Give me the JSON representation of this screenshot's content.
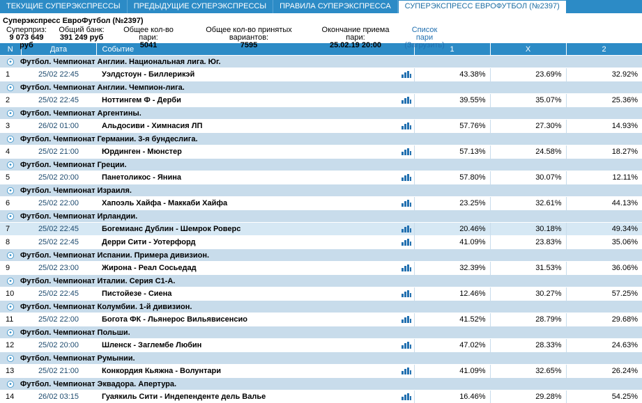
{
  "tabs": [
    {
      "label": "ТЕКУЩИЕ СУПЕРЭКСПРЕССЫ",
      "active": false
    },
    {
      "label": "ПРЕДЫДУЩИЕ СУПЕРЭКСПРЕССЫ",
      "active": false
    },
    {
      "label": "ПРАВИЛА СУПЕРЭКСПРЕССА",
      "active": false
    },
    {
      "label": "СУПЕРЭКСПРЕСС ЕВРОФУТБОЛ (№2397)",
      "active": true
    }
  ],
  "info": {
    "title": "Суперэкспресс ЕвроФутбол (№2397)",
    "superprize_label": "Суперприз:",
    "superprize_value": "9 073 649 руб",
    "bank_label": "Общий банк:",
    "bank_value": "391 249 руб",
    "bets_label": "Общее кол-во пари:",
    "bets_value": "5041",
    "variants_label": "Общее кол-во принятых вариантов:",
    "variants_value": "7595",
    "end_label": "Окончание приема пари:",
    "end_value": "25.02.19 20:00",
    "list_label": "Список пари",
    "list_load": "(Загрузить)"
  },
  "table": {
    "headers": {
      "n": "N",
      "date": "Дата",
      "event": "Событие",
      "p1": "1",
      "px": "X",
      "p2": "2"
    },
    "colors": {
      "header": "#2c8bc6",
      "category": "#c8dceb",
      "alt_row": "#d6e8f4",
      "chart_icon": "#2270b0"
    },
    "rows": [
      {
        "category": "Футбол. Чемпионат Англии. Национальная лига. Юг.",
        "n": "1",
        "date": "25/02 22:45",
        "event": "Уэлдстоун - Биллерикэй",
        "p1": "43.38%",
        "px": "23.69%",
        "p2": "32.92%",
        "alt": false
      },
      {
        "category": "Футбол. Чемпионат Англии. Чемпион-лига.",
        "n": "2",
        "date": "25/02 22:45",
        "event": "Ноттингем Ф - Дерби",
        "p1": "39.55%",
        "px": "35.07%",
        "p2": "25.36%",
        "alt": false
      },
      {
        "category": "Футбол. Чемпионат Аргентины.",
        "n": "3",
        "date": "26/02 01:00",
        "event": "Альдосиви - Химнасия ЛП",
        "p1": "57.76%",
        "px": "27.30%",
        "p2": "14.93%",
        "alt": false
      },
      {
        "category": "Футбол. Чемпионат Германии. 3-я бундеслига.",
        "n": "4",
        "date": "25/02 21:00",
        "event": "Юрдинген - Мюнстер",
        "p1": "57.13%",
        "px": "24.58%",
        "p2": "18.27%",
        "alt": false
      },
      {
        "category": "Футбол. Чемпионат Греции.",
        "n": "5",
        "date": "25/02 20:00",
        "event": "Панетоликос - Янина",
        "p1": "57.80%",
        "px": "30.07%",
        "p2": "12.11%",
        "alt": false
      },
      {
        "category": "Футбол. Чемпионат Израиля.",
        "n": "6",
        "date": "25/02 22:00",
        "event": "Хапоэль Хайфа - Маккаби Хайфа",
        "p1": "23.25%",
        "px": "32.61%",
        "p2": "44.13%",
        "alt": false
      },
      {
        "category": "Футбол. Чемпионат Ирландии.",
        "n": "7",
        "date": "25/02 22:45",
        "event": "Богемианс Дублин - Шемрок Роверс",
        "p1": "20.46%",
        "px": "30.18%",
        "p2": "49.34%",
        "alt": true
      },
      {
        "category": "",
        "n": "8",
        "date": "25/02 22:45",
        "event": "Дерри Сити - Уотерфорд",
        "p1": "41.09%",
        "px": "23.83%",
        "p2": "35.06%",
        "alt": false
      },
      {
        "category": "Футбол. Чемпионат Испании. Примера дивизион.",
        "n": "9",
        "date": "25/02 23:00",
        "event": "Жирона - Реал Сосьедад",
        "p1": "32.39%",
        "px": "31.53%",
        "p2": "36.06%",
        "alt": false
      },
      {
        "category": "Футбол. Чемпионат Италии. Серия С1-А.",
        "n": "10",
        "date": "25/02 22:45",
        "event": "Пистойезе - Сиена",
        "p1": "12.46%",
        "px": "30.27%",
        "p2": "57.25%",
        "alt": false
      },
      {
        "category": "Футбол. Чемпионат Колумбии. 1-й дивизион.",
        "n": "11",
        "date": "25/02 22:00",
        "event": "Богота ФК - Льянерос Вильявисенсио",
        "p1": "41.52%",
        "px": "28.79%",
        "p2": "29.68%",
        "alt": false
      },
      {
        "category": "Футбол. Чемпионат Польши.",
        "n": "12",
        "date": "25/02 20:00",
        "event": "Шленск - Заглембе Любин",
        "p1": "47.02%",
        "px": "28.33%",
        "p2": "24.63%",
        "alt": false
      },
      {
        "category": "Футбол. Чемпионат Румынии.",
        "n": "13",
        "date": "25/02 21:00",
        "event": "Конкордия Кьяжна - Волунтари",
        "p1": "41.09%",
        "px": "32.65%",
        "p2": "26.24%",
        "alt": false
      },
      {
        "category": "Футбол. Чемпионат Эквадора. Апертура.",
        "n": "14",
        "date": "26/02 03:15",
        "event": "Гуаякиль Сити - Индепенденте дель Валье",
        "p1": "16.46%",
        "px": "29.28%",
        "p2": "54.25%",
        "alt": false
      }
    ]
  }
}
